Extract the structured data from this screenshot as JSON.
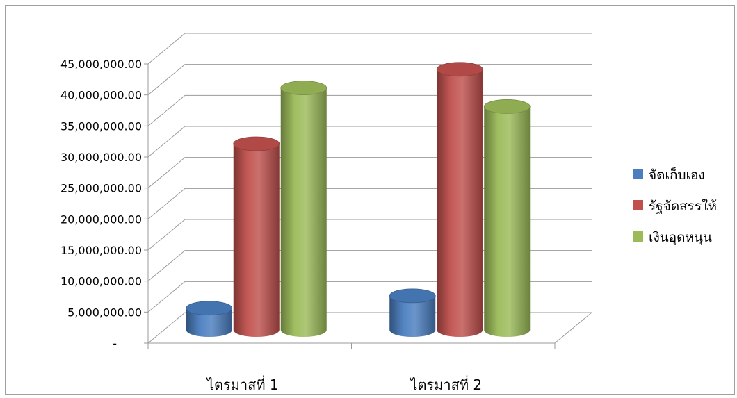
{
  "chart_data": {
    "type": "bar",
    "style": "3d-cylinder",
    "categories": [
      "ไตรมาสที่ 1",
      "ไตรมาสที่ 2"
    ],
    "series": [
      {
        "name": "จัดเก็บเอง",
        "color": "#4a7ebf",
        "values": [
          3500000,
          5500000
        ]
      },
      {
        "name": "รัฐจัดสรรให้",
        "color": "#c0504d",
        "values": [
          30000000,
          42000000
        ]
      },
      {
        "name": "เงินอุดหนุน",
        "color": "#9bbb59",
        "values": [
          39000000,
          36000000
        ]
      }
    ],
    "ylim": [
      0,
      45000000
    ],
    "yticks": [
      0,
      5000000,
      10000000,
      15000000,
      20000000,
      25000000,
      30000000,
      35000000,
      40000000,
      45000000
    ],
    "ytick_labels": [
      "-",
      "5,000,000.00",
      "10,000,000.00",
      "15,000,000.00",
      "20,000,000.00",
      "25,000,000.00",
      "30,000,000.00",
      "35,000,000.00",
      "40,000,000.00",
      "45,000,000.00"
    ],
    "grid": true,
    "legend_position": "right",
    "title": "",
    "xlabel": "",
    "ylabel": ""
  }
}
